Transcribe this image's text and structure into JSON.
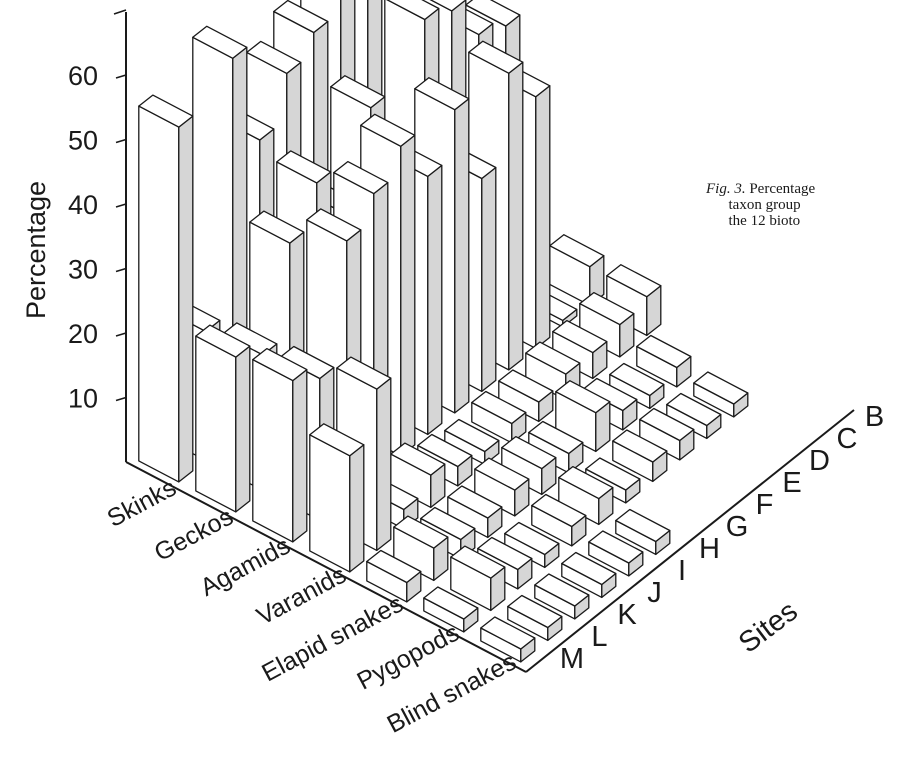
{
  "caption": {
    "fig_label": "Fig. 3.",
    "lines": [
      "Percentage",
      "taxon group",
      "the 12 bioto"
    ]
  },
  "chart_data": {
    "type": "bar",
    "y_axis": {
      "label": "Percentage",
      "ticks": [
        10,
        20,
        30,
        40,
        50,
        60
      ],
      "ylim": [
        0,
        70
      ]
    },
    "sites_axis_label": "Sites",
    "sites": [
      "M",
      "L",
      "K",
      "J",
      "I",
      "H",
      "G",
      "F",
      "E",
      "D",
      "C",
      "B"
    ],
    "taxa": [
      "Skinks",
      "Geckos",
      "Agamids",
      "Varanids",
      "Elapid snakes",
      "Pygopods",
      "Blind snakes"
    ],
    "series": [
      {
        "name": "Skinks",
        "values": [
          55,
          20,
          59,
          43,
          50,
          53,
          57,
          60,
          63,
          44,
          49,
          61
        ]
      },
      {
        "name": "Geckos",
        "values": [
          24,
          21,
          35,
          41,
          33,
          46,
          32,
          53,
          51,
          44,
          42,
          null
        ]
      },
      {
        "name": "Agamids",
        "values": [
          25,
          22,
          40,
          44,
          48,
          40,
          47,
          33,
          46,
          39,
          1,
          6
        ]
      },
      {
        "name": "Varanids",
        "values": [
          18,
          25,
          3,
          5,
          3,
          2,
          3,
          3,
          4,
          4,
          5,
          6
        ]
      },
      {
        "name": "Elapid snakes",
        "values": [
          3,
          5,
          3,
          3,
          4,
          4,
          3,
          6,
          3,
          2,
          3,
          null
        ]
      },
      {
        "name": "Pygopods",
        "values": [
          2,
          5,
          3,
          2,
          3,
          4,
          2,
          3,
          3,
          2,
          2,
          null
        ]
      },
      {
        "name": "Blind snakes",
        "values": [
          2,
          2,
          2,
          2,
          2,
          2,
          null,
          null,
          null,
          null,
          null,
          null
        ]
      }
    ],
    "grid": false,
    "legend": "none"
  }
}
